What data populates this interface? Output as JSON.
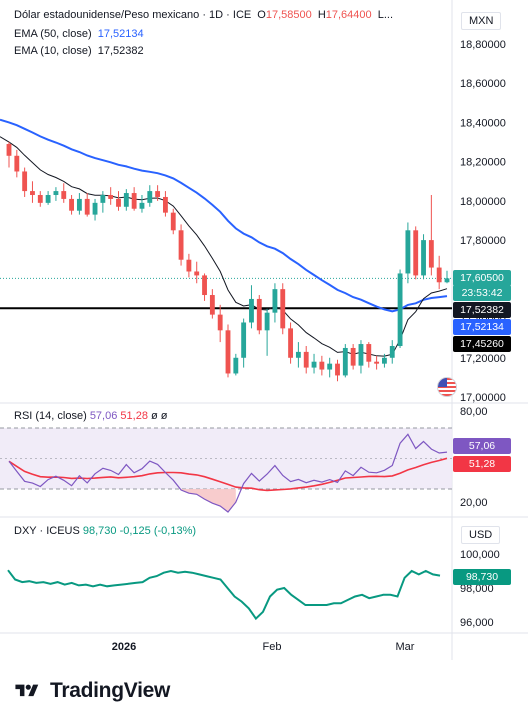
{
  "header": {
    "title": "Dólar estadounidense/Peso mexicano · 1D · ICE",
    "open_label": "O",
    "open_value": "17,58500",
    "high_label": "H",
    "high_value": "17,64400",
    "ellipsis": "L...",
    "ema50_label": "EMA (50, close)",
    "ema50_value": "17,52134",
    "ema10_label": "EMA (10, close)",
    "ema10_value": "17,52382"
  },
  "price_pane": {
    "unit": "MXN",
    "axis_labels": [
      "18,80000",
      "18,60000",
      "18,40000",
      "18,20000",
      "18,00000",
      "17,80000",
      "17,60000",
      "17,40000",
      "17,20000",
      "17,00000"
    ],
    "tags": {
      "last": "17,60500",
      "countdown": "23:53:42",
      "ema10": "17,52382",
      "ema50": "17,52134",
      "line": "17,45260"
    }
  },
  "rsi_pane": {
    "label": "RSI (14, close)",
    "rsi_value": "57,06",
    "ma_value": "51,28",
    "extra1": "ø",
    "extra2": "ø",
    "axis_labels": [
      "80,00",
      "20,00"
    ],
    "tags": {
      "rsi": "57,06",
      "ma": "51,28"
    }
  },
  "dxy_pane": {
    "label": "DXY · ICEUS",
    "value": "98,730",
    "change": "-0,125 (-0,13%)",
    "unit": "USD",
    "axis_labels": [
      "100,000",
      "98,000",
      "96,000"
    ],
    "tag": "98,730"
  },
  "time_axis": {
    "labels": [
      "2026",
      "Feb",
      "Mar"
    ]
  },
  "branding": {
    "name": "TradingView"
  },
  "colors": {
    "up": "#26a69a",
    "down": "#ef5350",
    "ema50": "#2962ff",
    "ema10": "#131722",
    "rsi": "#7e57c2",
    "rsi_ma": "#f23645",
    "dxy": "#089981",
    "line": "#000000"
  },
  "chart_data": [
    {
      "type": "candlestick",
      "title": "Dólar estadounidense/Peso mexicano · 1D · ICE",
      "ylim": [
        17.0,
        18.9
      ],
      "ohlc": [
        [
          18.29,
          18.3,
          18.17,
          18.23
        ],
        [
          18.23,
          18.26,
          18.12,
          18.15
        ],
        [
          18.15,
          18.17,
          18.02,
          18.05
        ],
        [
          18.05,
          18.1,
          17.99,
          18.03
        ],
        [
          18.03,
          18.05,
          17.97,
          17.99
        ],
        [
          17.99,
          18.05,
          17.98,
          18.03
        ],
        [
          18.03,
          18.07,
          18.0,
          18.05
        ],
        [
          18.05,
          18.09,
          17.99,
          18.01
        ],
        [
          18.01,
          18.03,
          17.93,
          17.95
        ],
        [
          17.95,
          18.04,
          17.93,
          18.01
        ],
        [
          18.01,
          18.04,
          17.92,
          17.93
        ],
        [
          17.93,
          18.01,
          17.9,
          17.99
        ],
        [
          17.99,
          18.05,
          17.94,
          18.03
        ],
        [
          18.03,
          18.07,
          17.98,
          18.01
        ],
        [
          18.01,
          18.05,
          17.95,
          17.97
        ],
        [
          17.97,
          18.06,
          17.95,
          18.04
        ],
        [
          18.04,
          18.07,
          17.95,
          17.96
        ],
        [
          17.96,
          18.03,
          17.94,
          17.99
        ],
        [
          17.99,
          18.08,
          17.97,
          18.05
        ],
        [
          18.05,
          18.08,
          18.0,
          18.02
        ],
        [
          18.02,
          18.05,
          17.92,
          17.94
        ],
        [
          17.94,
          17.96,
          17.83,
          17.85
        ],
        [
          17.85,
          17.88,
          17.67,
          17.7
        ],
        [
          17.7,
          17.73,
          17.61,
          17.64
        ],
        [
          17.64,
          17.69,
          17.58,
          17.62
        ],
        [
          17.62,
          17.63,
          17.49,
          17.52
        ],
        [
          17.52,
          17.55,
          17.4,
          17.42
        ],
        [
          17.42,
          17.47,
          17.28,
          17.34
        ],
        [
          17.34,
          17.37,
          17.1,
          17.12
        ],
        [
          17.12,
          17.22,
          17.11,
          17.2
        ],
        [
          17.2,
          17.4,
          17.15,
          17.38
        ],
        [
          17.38,
          17.57,
          17.35,
          17.5
        ],
        [
          17.5,
          17.52,
          17.32,
          17.34
        ],
        [
          17.34,
          17.45,
          17.21,
          17.43
        ],
        [
          17.43,
          17.58,
          17.38,
          17.55
        ],
        [
          17.55,
          17.58,
          17.32,
          17.35
        ],
        [
          17.35,
          17.38,
          17.17,
          17.2
        ],
        [
          17.2,
          17.28,
          17.15,
          17.23
        ],
        [
          17.23,
          17.26,
          17.12,
          17.15
        ],
        [
          17.15,
          17.22,
          17.12,
          17.18
        ],
        [
          17.18,
          17.21,
          17.11,
          17.14
        ],
        [
          17.14,
          17.2,
          17.1,
          17.17
        ],
        [
          17.17,
          17.19,
          17.08,
          17.11
        ],
        [
          17.11,
          17.27,
          17.1,
          17.25
        ],
        [
          17.25,
          17.27,
          17.14,
          17.16
        ],
        [
          17.16,
          17.29,
          17.12,
          17.27
        ],
        [
          17.27,
          17.28,
          17.15,
          17.18
        ],
        [
          17.18,
          17.21,
          17.14,
          17.17
        ],
        [
          17.17,
          17.22,
          17.15,
          17.2
        ],
        [
          17.2,
          17.29,
          17.17,
          17.26
        ],
        [
          17.26,
          17.65,
          17.25,
          17.63
        ],
        [
          17.63,
          17.89,
          17.58,
          17.85
        ],
        [
          17.85,
          17.87,
          17.6,
          17.62
        ],
        [
          17.62,
          17.83,
          17.6,
          17.8
        ],
        [
          17.8,
          18.03,
          17.62,
          17.66
        ],
        [
          17.66,
          17.72,
          17.55,
          17.585
        ],
        [
          17.585,
          17.644,
          17.58,
          17.605
        ]
      ],
      "series": [
        {
          "name": "EMA (50, close)",
          "last": 17.52134
        },
        {
          "name": "EMA (10, close)",
          "last": 17.52382
        }
      ],
      "horizontal_line": 17.4526
    },
    {
      "type": "line",
      "title": "RSI (14, close)",
      "ylim": [
        20,
        80
      ],
      "series": [
        {
          "name": "RSI (14, close)",
          "last": 57.06
        },
        {
          "name": "RSI-based MA",
          "last": 51.28
        }
      ]
    },
    {
      "type": "line",
      "title": "DXY · ICEUS",
      "ylim": [
        95.5,
        100.5
      ],
      "series": [
        {
          "name": "DXY · ICEUS",
          "last": 98.73,
          "values": [
            99.05,
            98.5,
            98.35,
            98.4,
            98.3,
            98.35,
            98.25,
            98.35,
            98.2,
            98.3,
            98.15,
            98.2,
            98.1,
            98.2,
            98.1,
            98.15,
            98.2,
            98.25,
            98.3,
            98.35,
            98.6,
            98.7,
            98.9,
            99.0,
            98.9,
            98.95,
            98.9,
            98.8,
            98.7,
            98.6,
            98.5,
            98.0,
            97.5,
            97.2,
            96.8,
            96.2,
            96.6,
            97.5,
            97.9,
            98.0,
            97.6,
            97.3,
            97.0,
            97.0,
            97.0,
            97.0,
            97.1,
            97.1,
            97.3,
            97.5,
            97.6,
            97.4,
            97.5,
            97.6,
            97.6,
            97.5,
            98.6,
            99.0,
            98.8,
            99.0,
            98.8,
            98.73
          ]
        }
      ]
    }
  ]
}
